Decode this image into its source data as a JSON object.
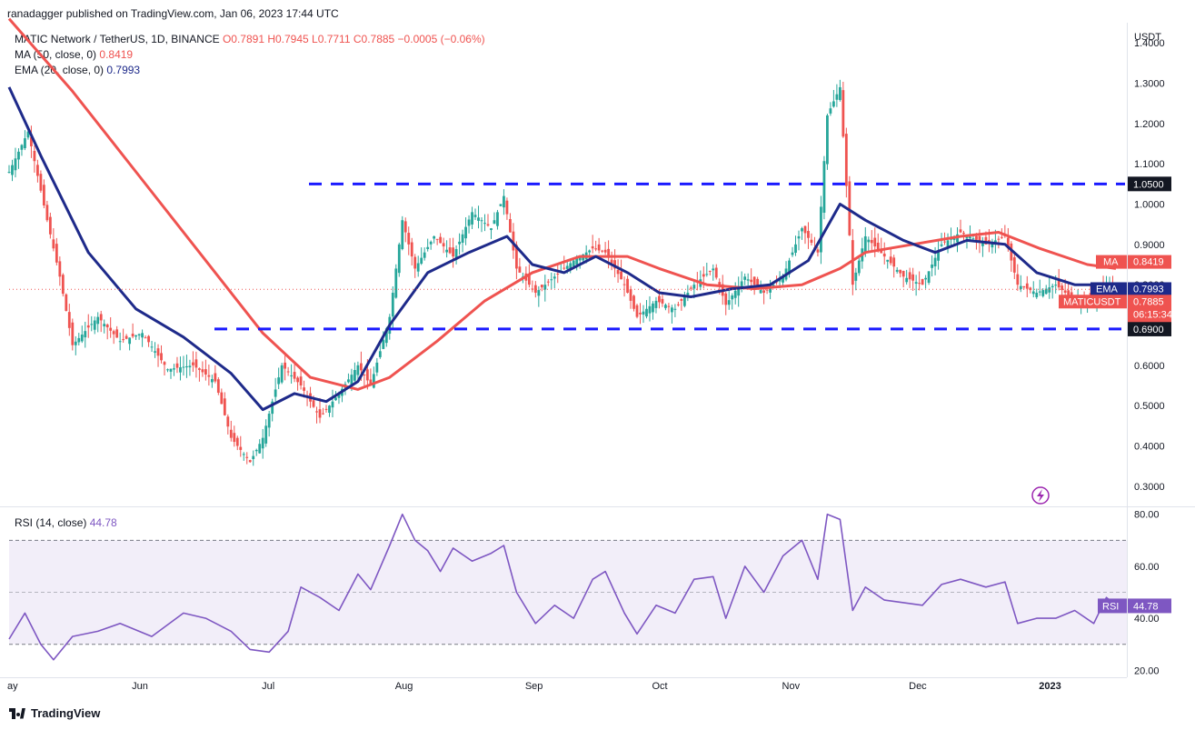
{
  "publisher": "ranadagger published on TradingView.com, Jan 06, 2023 17:44 UTC",
  "header": {
    "symbol": "MATIC Network / TetherUS, 1D, BINANCE",
    "ohlc": "O0.7891  H0.7945  L0.7711  C0.7885  −0.0005 (−0.06%)",
    "ma_label": "MA (50, close, 0)",
    "ma_value": "0.8419",
    "ema_label": "EMA (20, close, 0)",
    "ema_value": "0.7993"
  },
  "rsi_header": {
    "label": "RSI (14, close)",
    "value": "44.78"
  },
  "logo_text": "TradingView",
  "colors": {
    "up": "#26a69a",
    "down": "#ef5350",
    "ma": "#ef5350",
    "ema": "#1e2a8a",
    "rsi": "#7e57c2",
    "level": "#1a1aff"
  },
  "chart_data": [
    {
      "type": "candlestick",
      "currency": "USDT",
      "ylim": [
        0.25,
        1.45
      ],
      "yticks": [
        "0.3000",
        "0.4000",
        "0.5000",
        "0.6000",
        "0.7000",
        "0.8000",
        "0.9000",
        "1.0000",
        "1.1000",
        "1.2000",
        "1.3000",
        "1.4000"
      ],
      "xticks": [
        "ay",
        "Jun",
        "Jul",
        "Aug",
        "Sep",
        "Oct",
        "Nov",
        "Dec",
        "2023"
      ],
      "price_axis_label": "USDT",
      "levels": [
        {
          "value": 1.05,
          "label": "1.0500"
        },
        {
          "value": 0.69,
          "label": "0.6900"
        }
      ],
      "last_price": {
        "value": 0.7885,
        "label": "MATICUSDT",
        "value_label": "0.7885",
        "countdown": "06:15:34"
      },
      "ma": {
        "name": "MA",
        "value": 0.8419,
        "label": "0.8419"
      },
      "ema": {
        "name": "EMA",
        "value": 0.7993,
        "label": "0.7993"
      },
      "price_path": [
        [
          0,
          1.08
        ],
        [
          6,
          1.18
        ],
        [
          12,
          0.96
        ],
        [
          16,
          0.82
        ],
        [
          20,
          0.65
        ],
        [
          28,
          0.72
        ],
        [
          35,
          0.66
        ],
        [
          42,
          0.68
        ],
        [
          50,
          0.59
        ],
        [
          58,
          0.6
        ],
        [
          65,
          0.56
        ],
        [
          70,
          0.42
        ],
        [
          76,
          0.36
        ],
        [
          80,
          0.42
        ],
        [
          86,
          0.6
        ],
        [
          92,
          0.55
        ],
        [
          98,
          0.47
        ],
        [
          104,
          0.53
        ],
        [
          110,
          0.6
        ],
        [
          114,
          0.55
        ],
        [
          120,
          0.72
        ],
        [
          124,
          0.96
        ],
        [
          128,
          0.84
        ],
        [
          134,
          0.92
        ],
        [
          140,
          0.87
        ],
        [
          146,
          0.98
        ],
        [
          152,
          0.94
        ],
        [
          156,
          1.02
        ],
        [
          160,
          0.84
        ],
        [
          166,
          0.78
        ],
        [
          172,
          0.82
        ],
        [
          178,
          0.86
        ],
        [
          184,
          0.89
        ],
        [
          188,
          0.88
        ],
        [
          194,
          0.8
        ],
        [
          198,
          0.72
        ],
        [
          204,
          0.76
        ],
        [
          210,
          0.74
        ],
        [
          216,
          0.8
        ],
        [
          222,
          0.84
        ],
        [
          226,
          0.75
        ],
        [
          232,
          0.82
        ],
        [
          238,
          0.78
        ],
        [
          244,
          0.82
        ],
        [
          250,
          0.94
        ],
        [
          255,
          0.88
        ],
        [
          258,
          1.22
        ],
        [
          262,
          1.29
        ],
        [
          266,
          0.8
        ],
        [
          270,
          0.92
        ],
        [
          276,
          0.87
        ],
        [
          282,
          0.82
        ],
        [
          288,
          0.8
        ],
        [
          294,
          0.9
        ],
        [
          300,
          0.93
        ],
        [
          308,
          0.9
        ],
        [
          314,
          0.92
        ],
        [
          318,
          0.8
        ],
        [
          324,
          0.78
        ],
        [
          330,
          0.8
        ],
        [
          336,
          0.76
        ],
        [
          342,
          0.77
        ],
        [
          346,
          0.8
        ],
        [
          349,
          0.79
        ]
      ],
      "ma_path": [
        [
          0,
          1.46
        ],
        [
          20,
          1.28
        ],
        [
          40,
          1.08
        ],
        [
          60,
          0.88
        ],
        [
          80,
          0.68
        ],
        [
          95,
          0.57
        ],
        [
          110,
          0.54
        ],
        [
          120,
          0.57
        ],
        [
          135,
          0.66
        ],
        [
          150,
          0.76
        ],
        [
          165,
          0.83
        ],
        [
          180,
          0.87
        ],
        [
          195,
          0.87
        ],
        [
          205,
          0.84
        ],
        [
          220,
          0.8
        ],
        [
          235,
          0.79
        ],
        [
          250,
          0.8
        ],
        [
          262,
          0.84
        ],
        [
          270,
          0.88
        ],
        [
          285,
          0.9
        ],
        [
          300,
          0.92
        ],
        [
          312,
          0.93
        ],
        [
          325,
          0.89
        ],
        [
          340,
          0.85
        ],
        [
          349,
          0.84
        ]
      ],
      "ema_path": [
        [
          0,
          1.29
        ],
        [
          10,
          1.12
        ],
        [
          25,
          0.88
        ],
        [
          40,
          0.74
        ],
        [
          55,
          0.67
        ],
        [
          70,
          0.58
        ],
        [
          80,
          0.49
        ],
        [
          90,
          0.53
        ],
        [
          100,
          0.51
        ],
        [
          110,
          0.56
        ],
        [
          120,
          0.7
        ],
        [
          132,
          0.83
        ],
        [
          145,
          0.88
        ],
        [
          157,
          0.92
        ],
        [
          165,
          0.85
        ],
        [
          175,
          0.83
        ],
        [
          185,
          0.87
        ],
        [
          195,
          0.83
        ],
        [
          205,
          0.78
        ],
        [
          215,
          0.77
        ],
        [
          228,
          0.79
        ],
        [
          240,
          0.8
        ],
        [
          252,
          0.86
        ],
        [
          262,
          1.0
        ],
        [
          270,
          0.96
        ],
        [
          282,
          0.91
        ],
        [
          292,
          0.88
        ],
        [
          302,
          0.91
        ],
        [
          314,
          0.9
        ],
        [
          324,
          0.83
        ],
        [
          336,
          0.8
        ],
        [
          349,
          0.8
        ]
      ]
    },
    {
      "type": "line",
      "name": "RSI",
      "ylim": [
        18,
        82
      ],
      "yticks": [
        "20.00",
        "40.00",
        "60.00",
        "80.00"
      ],
      "band": [
        30,
        70
      ],
      "mid": 50,
      "last": {
        "value": 44.78,
        "name": "RSI",
        "label": "44.78"
      },
      "values": [
        [
          0,
          32
        ],
        [
          5,
          42
        ],
        [
          10,
          30
        ],
        [
          14,
          24
        ],
        [
          20,
          33
        ],
        [
          28,
          35
        ],
        [
          35,
          38
        ],
        [
          45,
          33
        ],
        [
          55,
          42
        ],
        [
          62,
          40
        ],
        [
          70,
          35
        ],
        [
          76,
          28
        ],
        [
          82,
          27
        ],
        [
          88,
          35
        ],
        [
          92,
          52
        ],
        [
          98,
          48
        ],
        [
          104,
          43
        ],
        [
          110,
          57
        ],
        [
          114,
          51
        ],
        [
          120,
          68
        ],
        [
          124,
          80
        ],
        [
          128,
          70
        ],
        [
          132,
          66
        ],
        [
          136,
          58
        ],
        [
          140,
          67
        ],
        [
          146,
          62
        ],
        [
          152,
          65
        ],
        [
          156,
          68
        ],
        [
          160,
          50
        ],
        [
          166,
          38
        ],
        [
          172,
          45
        ],
        [
          178,
          40
        ],
        [
          184,
          55
        ],
        [
          188,
          58
        ],
        [
          194,
          42
        ],
        [
          198,
          34
        ],
        [
          204,
          45
        ],
        [
          210,
          42
        ],
        [
          216,
          55
        ],
        [
          222,
          56
        ],
        [
          226,
          40
        ],
        [
          232,
          60
        ],
        [
          238,
          50
        ],
        [
          244,
          64
        ],
        [
          250,
          70
        ],
        [
          255,
          55
        ],
        [
          258,
          80
        ],
        [
          262,
          78
        ],
        [
          266,
          43
        ],
        [
          270,
          52
        ],
        [
          276,
          47
        ],
        [
          282,
          46
        ],
        [
          288,
          45
        ],
        [
          294,
          53
        ],
        [
          300,
          55
        ],
        [
          308,
          52
        ],
        [
          314,
          54
        ],
        [
          318,
          38
        ],
        [
          324,
          40
        ],
        [
          330,
          40
        ],
        [
          336,
          43
        ],
        [
          342,
          38
        ],
        [
          346,
          48
        ],
        [
          349,
          45
        ]
      ]
    }
  ]
}
